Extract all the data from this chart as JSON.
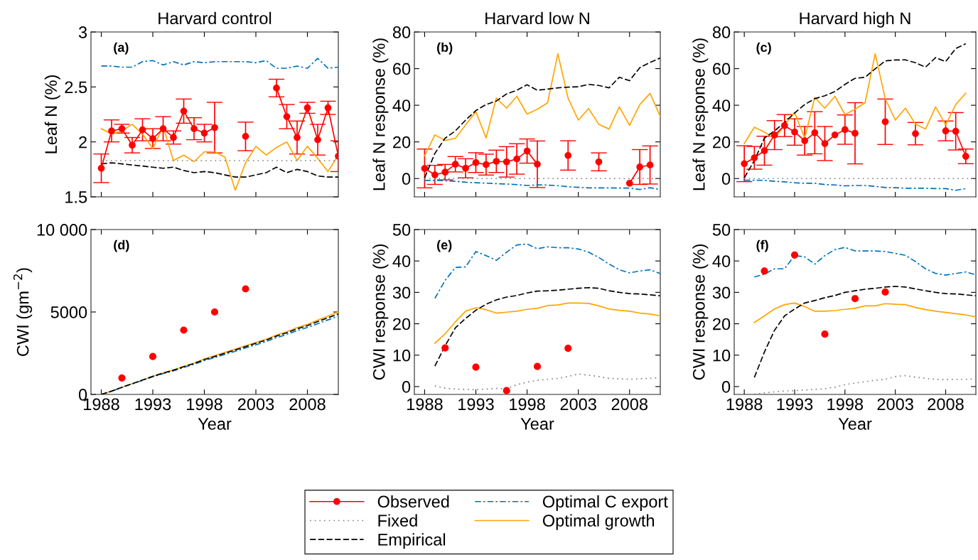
{
  "chart_data": [
    {
      "type": "line",
      "title": "Harvard control",
      "ylabel": "Leaf N (%)",
      "annotations": [
        "(a)"
      ],
      "legend": "bottom",
      "grid": false,
      "tick_labels": "y",
      "x": [
        1988,
        1989,
        1990,
        1991,
        1992,
        1993,
        1994,
        1995,
        1996,
        1997,
        1998,
        1999,
        2000,
        2001,
        2002,
        2003,
        2004,
        2005,
        2006,
        2007,
        2008,
        2009,
        2010,
        2011
      ],
      "xlim": [
        1987,
        2011
      ],
      "xticks": [
        1988,
        1993,
        1998,
        2003,
        2008
      ],
      "ylim": [
        1.5,
        3
      ],
      "yticks": [
        1.5,
        2,
        2.5,
        3
      ],
      "series": [
        {
          "name": "Observed",
          "color": "#ff0000",
          "marker": "circle",
          "line_style": "solid",
          "values": [
            1.76,
            2.1,
            2.12,
            1.97,
            2.11,
            2.03,
            2.12,
            2.04,
            2.28,
            2.12,
            2.08,
            2.13,
            null,
            null,
            2.05,
            null,
            null,
            2.49,
            2.23,
            2.04,
            2.31,
            2.02,
            2.31,
            1.87
          ],
          "errors": [
            0.13,
            0.1,
            0.04,
            0.07,
            0.1,
            0.09,
            0.11,
            0.06,
            0.11,
            0.1,
            0.08,
            0.23,
            null,
            null,
            0.13,
            null,
            null,
            0.08,
            0.11,
            0.15,
            0.05,
            0.14,
            0.06,
            0.14
          ]
        },
        {
          "name": "Fixed",
          "color": "#808080",
          "marker": "none",
          "line_style": "dotted",
          "values": [
            1.83,
            1.83,
            1.83,
            1.83,
            1.83,
            1.83,
            1.83,
            1.83,
            1.83,
            1.83,
            1.83,
            1.83,
            1.83,
            1.83,
            1.83,
            1.83,
            1.83,
            1.83,
            1.83,
            1.83,
            1.83,
            1.83,
            1.83,
            1.83
          ]
        },
        {
          "name": "Empirical",
          "color": "#000000",
          "marker": "none",
          "line_style": "dashed",
          "values": [
            1.8,
            1.81,
            1.8,
            1.79,
            1.78,
            1.77,
            1.76,
            1.77,
            1.74,
            1.72,
            1.73,
            1.72,
            1.7,
            1.68,
            1.68,
            1.7,
            1.72,
            1.77,
            1.72,
            1.75,
            1.73,
            1.69,
            1.68,
            1.68
          ]
        },
        {
          "name": "Optimal C export",
          "color": "#0072bd",
          "marker": "none",
          "line_style": "dashdot",
          "values": [
            2.69,
            2.69,
            2.68,
            2.68,
            2.73,
            2.74,
            2.7,
            2.73,
            2.7,
            2.73,
            2.72,
            2.73,
            2.73,
            2.73,
            2.73,
            2.72,
            2.74,
            2.67,
            2.67,
            2.69,
            2.67,
            2.76,
            2.67,
            2.68
          ]
        },
        {
          "name": "Optimal growth",
          "color": "#ffa500",
          "marker": "none",
          "line_style": "solid",
          "values": [
            2.12,
            2.07,
            2.1,
            2.16,
            2.07,
            1.94,
            2.14,
            1.83,
            1.88,
            1.82,
            1.91,
            1.91,
            1.86,
            1.56,
            1.81,
            1.96,
            1.88,
            1.95,
            2.0,
            1.83,
            1.96,
            1.85,
            1.73,
            1.88
          ]
        }
      ]
    },
    {
      "type": "line",
      "title": "Harvard low N",
      "ylabel": "Leaf N response (%)",
      "annotations": [
        "(b)"
      ],
      "grid": false,
      "tick_labels": "y",
      "x": [
        1988,
        1989,
        1990,
        1991,
        1992,
        1993,
        1994,
        1995,
        1996,
        1997,
        1998,
        1999,
        2000,
        2001,
        2002,
        2003,
        2004,
        2005,
        2006,
        2007,
        2008,
        2009,
        2010,
        2011
      ],
      "xlim": [
        1987,
        2011
      ],
      "xticks": [
        1988,
        1993,
        1998,
        2003,
        2008
      ],
      "ylim": [
        -10,
        80
      ],
      "yticks": [
        0,
        20,
        40,
        60,
        80
      ],
      "series": [
        {
          "name": "Observed",
          "color": "#ff0000",
          "marker": "circle",
          "line_style": "solid",
          "values": [
            5.5,
            2.0,
            3.5,
            7.8,
            5.6,
            8.7,
            7.6,
            9.4,
            9.1,
            10.7,
            15.0,
            7.8,
            null,
            null,
            12.6,
            null,
            null,
            9.1,
            null,
            null,
            -2.6,
            6.3,
            7.4,
            null
          ],
          "errors": [
            10.6,
            5.2,
            4.2,
            4.2,
            5.2,
            5.4,
            5.7,
            6.1,
            8.3,
            8.3,
            6.6,
            12.7,
            null,
            null,
            8,
            null,
            null,
            4.9,
            null,
            null,
            null,
            9.5,
            10.4,
            null
          ]
        },
        {
          "name": "Fixed",
          "color": "#808080",
          "marker": "none",
          "line_style": "dotted",
          "values": [
            0,
            0,
            0,
            0,
            0,
            0,
            0,
            0,
            0,
            0,
            0,
            0,
            0,
            0,
            0,
            0,
            0,
            0,
            0,
            0,
            0,
            0,
            0,
            0
          ]
        },
        {
          "name": "Empirical",
          "color": "#000000",
          "marker": "none",
          "line_style": "dashed",
          "values": [
            0.4,
            13.7,
            22,
            26,
            31.9,
            37.1,
            40.4,
            42.3,
            46.2,
            48.2,
            51.2,
            48.2,
            48.8,
            49.5,
            49.9,
            50.1,
            51.4,
            50.8,
            49.5,
            55.3,
            53.4,
            60.5,
            63.4,
            65.8
          ]
        },
        {
          "name": "Optimal C export",
          "color": "#0072bd",
          "marker": "none",
          "line_style": "dashdot",
          "values": [
            -1,
            -1,
            -1.2,
            -1.5,
            -2,
            -2.3,
            -2.5,
            -2.8,
            -3,
            -3.3,
            -3.8,
            -3.4,
            -3.6,
            -3.9,
            -4.5,
            -4.8,
            -5.1,
            -5.1,
            -5.1,
            -5.2,
            -5.2,
            -6,
            -5,
            -6
          ]
        },
        {
          "name": "Optimal growth",
          "color": "#ffa500",
          "marker": "none",
          "line_style": "solid",
          "values": [
            12.4,
            23.8,
            20.8,
            21.9,
            29.3,
            36.5,
            22.1,
            44,
            38.4,
            44.9,
            35.2,
            37.8,
            41.3,
            68.1,
            43.9,
            31.9,
            38.2,
            29.6,
            27,
            39.1,
            29,
            40.4,
            46.5,
            33.9
          ]
        }
      ]
    },
    {
      "type": "line",
      "title": "Harvard high N",
      "ylabel": "Leaf N response (%)",
      "annotations": [
        "(c)"
      ],
      "grid": false,
      "tick_labels": "y",
      "x": [
        1988,
        1989,
        1990,
        1991,
        1992,
        1993,
        1994,
        1995,
        1996,
        1997,
        1998,
        1999,
        2000,
        2001,
        2002,
        2003,
        2004,
        2005,
        2006,
        2007,
        2008,
        2009,
        2010,
        2011
      ],
      "xlim": [
        1987,
        2011
      ],
      "xticks": [
        1988,
        1993,
        1998,
        2003,
        2008
      ],
      "ylim": [
        -10,
        80
      ],
      "yticks": [
        0,
        20,
        40,
        60,
        80
      ],
      "series": [
        {
          "name": "Observed",
          "color": "#ff0000",
          "marker": "circle",
          "line_style": "solid",
          "values": [
            8.1,
            11.3,
            15.2,
            23.7,
            28.9,
            25.4,
            20.6,
            25,
            19.1,
            23.8,
            26.7,
            24.7,
            null,
            null,
            31,
            null,
            null,
            24.5,
            null,
            null,
            26,
            25.8,
            12.1,
            null
          ],
          "errors": [
            9.8,
            6.2,
            7.9,
            7.9,
            6,
            7.2,
            7.8,
            11.5,
            9.3,
            null,
            8,
            16.7,
            null,
            null,
            12.4,
            null,
            null,
            6.1,
            null,
            null,
            5.4,
            10.2,
            4,
            null
          ]
        },
        {
          "name": "Fixed",
          "color": "#808080",
          "marker": "none",
          "line_style": "dotted",
          "values": [
            0,
            0,
            0,
            0,
            0,
            0,
            0,
            0,
            0,
            0,
            0,
            0,
            0,
            0,
            0,
            0,
            0,
            0,
            0,
            0,
            0,
            0,
            0,
            0
          ]
        },
        {
          "name": "Empirical",
          "color": "#000000",
          "marker": "none",
          "line_style": "dashed",
          "values": [
            0.4,
            9.8,
            22.1,
            26,
            30.6,
            35.8,
            40.4,
            43.6,
            45.2,
            47.5,
            51.4,
            54.7,
            55.3,
            59.9,
            64.2,
            64.7,
            64.8,
            63.2,
            60.8,
            66,
            63.8,
            71,
            73.6,
            null
          ]
        },
        {
          "name": "Optimal C export",
          "color": "#0072bd",
          "marker": "none",
          "line_style": "dashdot",
          "values": [
            -0.9,
            -0.9,
            -1,
            -1.5,
            -1.8,
            -2.3,
            -2.6,
            -2.6,
            -3.3,
            -3.5,
            -4,
            -3.8,
            -3.8,
            -4.3,
            -4.9,
            -5,
            -5.3,
            -5.3,
            -5.3,
            -5.5,
            -5.5,
            -6.4,
            -5.5,
            null
          ]
        },
        {
          "name": "Optimal growth",
          "color": "#ffa500",
          "marker": "none",
          "line_style": "solid",
          "values": [
            19.1,
            28,
            25.4,
            21.9,
            29.3,
            36,
            22.1,
            44.3,
            38.4,
            44.9,
            34.9,
            37.8,
            41.4,
            68.1,
            43.6,
            31.9,
            38.4,
            29.7,
            27,
            39.1,
            29.3,
            40.4,
            46.6,
            null
          ]
        }
      ]
    },
    {
      "type": "line",
      "xlabel": "Year",
      "ylabel": "CWI (gm$^{−2}$)",
      "annotations": [
        "(d)"
      ],
      "grid": false,
      "x": [
        1988,
        1989,
        1990,
        1991,
        1992,
        1993,
        1994,
        1995,
        1996,
        1997,
        1998,
        1999,
        2000,
        2001,
        2002,
        2003,
        2004,
        2005,
        2006,
        2007,
        2008,
        2009,
        2010,
        2011
      ],
      "xlim": [
        1987,
        2011
      ],
      "xticks": [
        1988,
        1993,
        1998,
        2003,
        2008
      ],
      "ylim": [
        0,
        10000
      ],
      "yticks": [
        0,
        5000,
        {
          "value": 10000,
          "label": "10 000"
        }
      ],
      "series": [
        {
          "name": "Observed",
          "type": "scatter",
          "color": "#ff0000",
          "marker": "circle",
          "x": [
            1990,
            1993,
            1996,
            1999,
            2002
          ],
          "values": [
            1000,
            2300,
            3900,
            5000,
            6400
          ]
        },
        {
          "name": "Empirical",
          "color": "#000000",
          "marker": "none",
          "line_style": "dashed",
          "values": [
            0,
            200,
            430,
            650,
            870,
            1100,
            1290,
            1470,
            1680,
            1880,
            2110,
            2300,
            2500,
            2700,
            2900,
            3100,
            3300,
            3540,
            3740,
            3980,
            4170,
            4420,
            4650,
            4880
          ]
        },
        {
          "name": "Optimal C export",
          "color": "#0072bd",
          "marker": "none",
          "line_style": "dashdot",
          "values": [
            0,
            190,
            420,
            640,
            850,
            1070,
            1260,
            1430,
            1630,
            1830,
            2050,
            2240,
            2430,
            2620,
            2820,
            3010,
            3210,
            3440,
            3640,
            3870,
            4060,
            4290,
            4520,
            4750
          ]
        },
        {
          "name": "Optimal growth",
          "color": "#ffa500",
          "marker": "none",
          "line_style": "solid",
          "values": [
            0,
            200,
            430,
            650,
            870,
            1100,
            1300,
            1480,
            1700,
            1900,
            2150,
            2350,
            2550,
            2750,
            2950,
            3150,
            3350,
            3600,
            3800,
            4050,
            4250,
            4500,
            4750,
            5000
          ]
        }
      ]
    },
    {
      "type": "line",
      "xlabel": "Year",
      "ylabel": "CWI response (%)",
      "annotations": [
        "(e)"
      ],
      "grid": false,
      "x": [
        1989,
        1990,
        1991,
        1992,
        1993,
        1994,
        1995,
        1996,
        1997,
        1998,
        1999,
        2000,
        2001,
        2002,
        2003,
        2004,
        2005,
        2006,
        2007,
        2008,
        2009,
        2010,
        2011
      ],
      "xlim": [
        1987,
        2011
      ],
      "xticks": [
        1988,
        1993,
        1998,
        2003,
        2008
      ],
      "ylim": [
        -2.5,
        50
      ],
      "yticks": [
        0,
        10,
        20,
        30,
        40,
        50
      ],
      "series": [
        {
          "name": "Observed",
          "type": "scatter",
          "color": "#ff0000",
          "marker": "circle",
          "x": [
            1990,
            1993,
            1996,
            1999,
            2002
          ],
          "values": [
            12.3,
            6.2,
            -1.3,
            6.4,
            12.2
          ]
        },
        {
          "name": "Fixed",
          "color": "#808080",
          "marker": "none",
          "line_style": "dotted",
          "values": [
            0.2,
            -0.5,
            -0.8,
            -0.9,
            -1,
            -0.8,
            -0.6,
            -0.7,
            0.6,
            1.4,
            2,
            2.3,
            2.6,
            3.2,
            4,
            3.6,
            3.2,
            2.6,
            2.5,
            2.3,
            2.5,
            2.6,
            2.9
          ]
        },
        {
          "name": "Empirical",
          "color": "#000000",
          "marker": "none",
          "line_style": "dashed",
          "values": [
            6.5,
            13,
            18.7,
            21.7,
            24.3,
            26.2,
            27.6,
            28.5,
            29,
            29.8,
            30.4,
            30.5,
            30.7,
            31,
            31.3,
            31.5,
            31.3,
            30.5,
            30,
            29.6,
            29.5,
            29.2,
            28.9
          ]
        },
        {
          "name": "Optimal C export",
          "color": "#0072bd",
          "marker": "none",
          "line_style": "dashdot",
          "values": [
            28.1,
            33.8,
            37.9,
            38.1,
            43,
            41.7,
            40.2,
            42.8,
            45.1,
            45.4,
            43.9,
            44.5,
            44.2,
            44.2,
            43.8,
            42.8,
            41.1,
            39,
            37.2,
            36.2,
            36.8,
            37.2,
            36
          ]
        },
        {
          "name": "Optimal growth",
          "color": "#ffa500",
          "marker": "none",
          "line_style": "solid",
          "values": [
            13.8,
            16.8,
            20.6,
            24,
            25.1,
            24.5,
            23.4,
            23.7,
            24,
            24.6,
            24.9,
            25.8,
            26,
            26.6,
            26.6,
            26.5,
            25.7,
            24.7,
            24.3,
            24,
            23.4,
            23.1,
            22.5
          ]
        }
      ]
    },
    {
      "type": "line",
      "xlabel": "Year",
      "ylabel": "CWI response (%)",
      "annotations": [
        "(f)"
      ],
      "grid": false,
      "x": [
        1989,
        1990,
        1991,
        1992,
        1993,
        1994,
        1995,
        1996,
        1997,
        1998,
        1999,
        2000,
        2001,
        2002,
        2003,
        2004,
        2005,
        2006,
        2007,
        2008,
        2009,
        2010,
        2011
      ],
      "xlim": [
        1987,
        2011
      ],
      "xticks": [
        1988,
        1993,
        1998,
        2003,
        2008
      ],
      "ylim": [
        -2.5,
        50
      ],
      "yticks": [
        0,
        10,
        20,
        30,
        40,
        50
      ],
      "series": [
        {
          "name": "Observed",
          "type": "scatter",
          "color": "#ff0000",
          "marker": "circle",
          "x": [
            1990,
            1993,
            1996,
            1999,
            2002
          ],
          "values": [
            36.8,
            41.9,
            16.7,
            28,
            30.1
          ]
        },
        {
          "name": "Fixed",
          "color": "#808080",
          "marker": "none",
          "line_style": "dotted",
          "values": [
            -2.4,
            -2,
            -1.7,
            -1.4,
            -1.3,
            -1.1,
            -0.9,
            -0.7,
            -0.2,
            0.6,
            1.1,
            1.6,
            2,
            2.3,
            3.2,
            3.5,
            3,
            2.6,
            2.3,
            2.2,
            2.3,
            2.3,
            2.5
          ]
        },
        {
          "name": "Empirical",
          "color": "#000000",
          "marker": "none",
          "line_style": "dashed",
          "values": [
            2.9,
            11,
            17.9,
            22.5,
            24.7,
            26.6,
            27.4,
            28.3,
            29,
            30,
            30.5,
            31,
            31.3,
            31.7,
            31.9,
            31.7,
            31.1,
            30.5,
            30,
            29.6,
            29.5,
            29.2,
            28.9
          ]
        },
        {
          "name": "Optimal C export",
          "color": "#0072bd",
          "marker": "none",
          "line_style": "dashdot",
          "values": [
            34.9,
            35.8,
            37.5,
            37.5,
            41.7,
            41.3,
            39,
            41.7,
            43.6,
            44.3,
            43.2,
            43.2,
            43.2,
            43,
            42.4,
            41.8,
            39.8,
            37.5,
            36,
            35.5,
            36,
            36.5,
            35.6
          ]
        },
        {
          "name": "Optimal growth",
          "color": "#ffa500",
          "marker": "none",
          "line_style": "solid",
          "values": [
            20.4,
            22.5,
            24.7,
            26.1,
            26.6,
            25.5,
            24,
            24,
            24.2,
            24.6,
            24.9,
            25.7,
            25.7,
            26.4,
            26.2,
            26.1,
            25.2,
            24.5,
            24,
            23.6,
            23.2,
            22.8,
            22.2
          ]
        }
      ]
    }
  ]
}
